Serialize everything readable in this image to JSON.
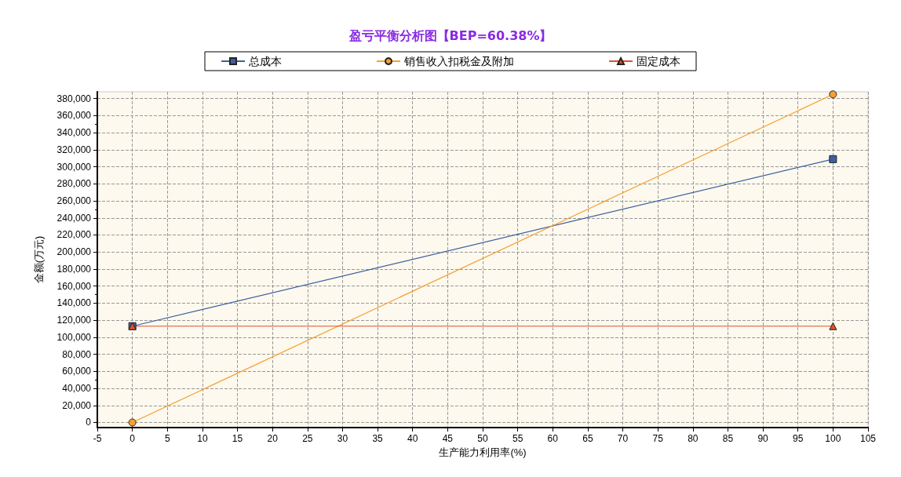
{
  "chart_data": {
    "type": "line",
    "title": "盈亏平衡分析图【BEP=60.38%】",
    "xlabel": "生产能力利用率(%)",
    "ylabel": "金额(万元)",
    "xlim": [
      -5,
      105
    ],
    "xticks": [
      -5,
      0,
      5,
      10,
      15,
      20,
      25,
      30,
      35,
      40,
      45,
      50,
      55,
      60,
      65,
      70,
      75,
      80,
      85,
      90,
      95,
      100,
      105
    ],
    "ylim": [
      -6000,
      388000
    ],
    "yticks": [
      {
        "value": 0,
        "label": "0"
      },
      {
        "value": 20000,
        "label": "20,000"
      },
      {
        "value": 40000,
        "label": "40,000"
      },
      {
        "value": 60000,
        "label": "60,000"
      },
      {
        "value": 80000,
        "label": "80,000"
      },
      {
        "value": 100000,
        "label": "100,000"
      },
      {
        "value": 120000,
        "label": "120,000"
      },
      {
        "value": 140000,
        "label": "140,000"
      },
      {
        "value": 160000,
        "label": "160,000"
      },
      {
        "value": 180000,
        "label": "180,000"
      },
      {
        "value": 200000,
        "label": "200,000"
      },
      {
        "value": 220000,
        "label": "220,000"
      },
      {
        "value": 240000,
        "label": "240,000"
      },
      {
        "value": 260000,
        "label": "260,000"
      },
      {
        "value": 280000,
        "label": "280,000"
      },
      {
        "value": 300000,
        "label": "300,000"
      },
      {
        "value": 320000,
        "label": "320,000"
      },
      {
        "value": 340000,
        "label": "340,000"
      },
      {
        "value": 360000,
        "label": "360,000"
      },
      {
        "value": 380000,
        "label": "380,000"
      }
    ],
    "x": [
      0,
      100
    ],
    "grid": true,
    "legend": "top",
    "line_style": "solid",
    "series": [
      {
        "name": "总成本",
        "color": "#3d5f9e",
        "marker": "square",
        "values": [
          113000,
          309000
        ]
      },
      {
        "name": "销售收入扣税金及附加",
        "color": "#f5a033",
        "marker": "circle",
        "values": [
          0,
          385000
        ]
      },
      {
        "name": "固定成本",
        "color": "#e0502a",
        "marker": "triangle",
        "values": [
          113000,
          113000
        ]
      }
    ]
  }
}
